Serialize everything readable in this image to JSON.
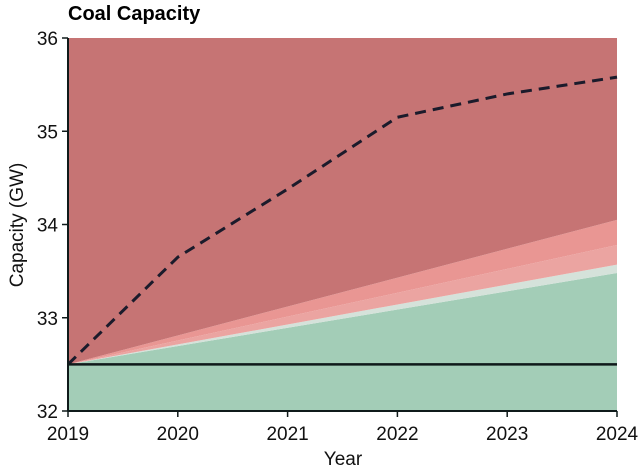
{
  "chart_data": {
    "type": "area",
    "title": "Coal Capacity",
    "xlabel": "Year",
    "ylabel": "Capacity (GW)",
    "xlim": [
      2019,
      2024
    ],
    "ylim": [
      32,
      36
    ],
    "x_ticks": [
      2019,
      2020,
      2021,
      2022,
      2023,
      2024
    ],
    "y_ticks": [
      32,
      33,
      34,
      35,
      36
    ],
    "grid": false,
    "bands": [
      {
        "from": "bottom",
        "x": [
          2019,
          2024
        ],
        "upper": [
          32.5,
          33.48
        ],
        "color": "#a3cdb7"
      },
      {
        "x": [
          2019,
          2024
        ],
        "lower": [
          32.5,
          33.48
        ],
        "upper": [
          32.5,
          33.57
        ],
        "color": "#d5e2da"
      },
      {
        "x": [
          2019,
          2024
        ],
        "lower": [
          32.5,
          33.57
        ],
        "upper": [
          32.5,
          33.78
        ],
        "color": "#eba4a1"
      },
      {
        "x": [
          2019,
          2024
        ],
        "lower": [
          32.5,
          33.78
        ],
        "upper": [
          32.5,
          34.05
        ],
        "color": "#e99693"
      },
      {
        "x": [
          2019,
          2024
        ],
        "lower": [
          32.5,
          34.05
        ],
        "to": "top",
        "color": "#c67474"
      }
    ],
    "series": [
      {
        "style": "dashed",
        "color": "#1b1b2b",
        "x": [
          2019,
          2020,
          2021,
          2022,
          2023,
          2024
        ],
        "values": [
          32.5,
          33.65,
          34.38,
          35.15,
          35.4,
          35.58
        ]
      },
      {
        "style": "solid",
        "color": "#0f1a1a",
        "x": [
          2019,
          2024
        ],
        "values": [
          32.5,
          32.5
        ]
      }
    ]
  }
}
